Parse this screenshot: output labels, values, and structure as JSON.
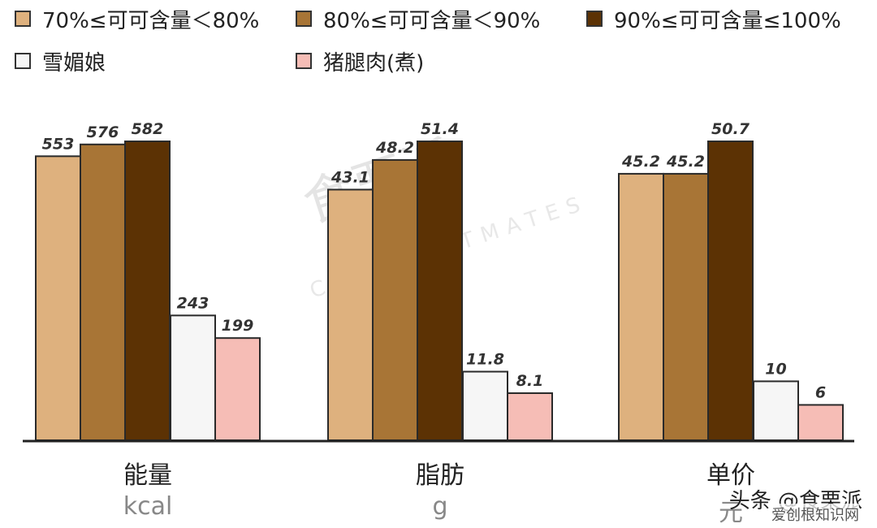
{
  "chart_data": {
    "type": "bar",
    "categories": [
      "能量",
      "脂肪",
      "单价"
    ],
    "units": [
      "kcal",
      "g",
      "元"
    ],
    "series": [
      {
        "name": "70%≤可可含量＜80%",
        "color": "#deb17e",
        "values": [
          553,
          43.1,
          45.2
        ]
      },
      {
        "name": "80%≤可可含量＜90%",
        "color": "#a87536",
        "values": [
          576,
          48.2,
          45.2
        ]
      },
      {
        "name": "90%≤可可含量≤100%",
        "color": "#5c3204",
        "values": [
          582,
          51.4,
          50.7
        ]
      },
      {
        "name": "雪媚娘",
        "color": "#f6f6f6",
        "values": [
          243,
          11.8,
          10
        ]
      },
      {
        "name": "猪腿肉(煮)",
        "color": "#f6bdb6",
        "values": [
          199,
          8.1,
          6
        ]
      }
    ],
    "legend_position": "top",
    "grid": false,
    "data_labels": true
  },
  "watermark": {
    "text": "食栗派",
    "sub": "CHESTNUTMATES"
  },
  "credit": {
    "text": "头条 @食栗派",
    "sub": "爱创根知识网"
  }
}
